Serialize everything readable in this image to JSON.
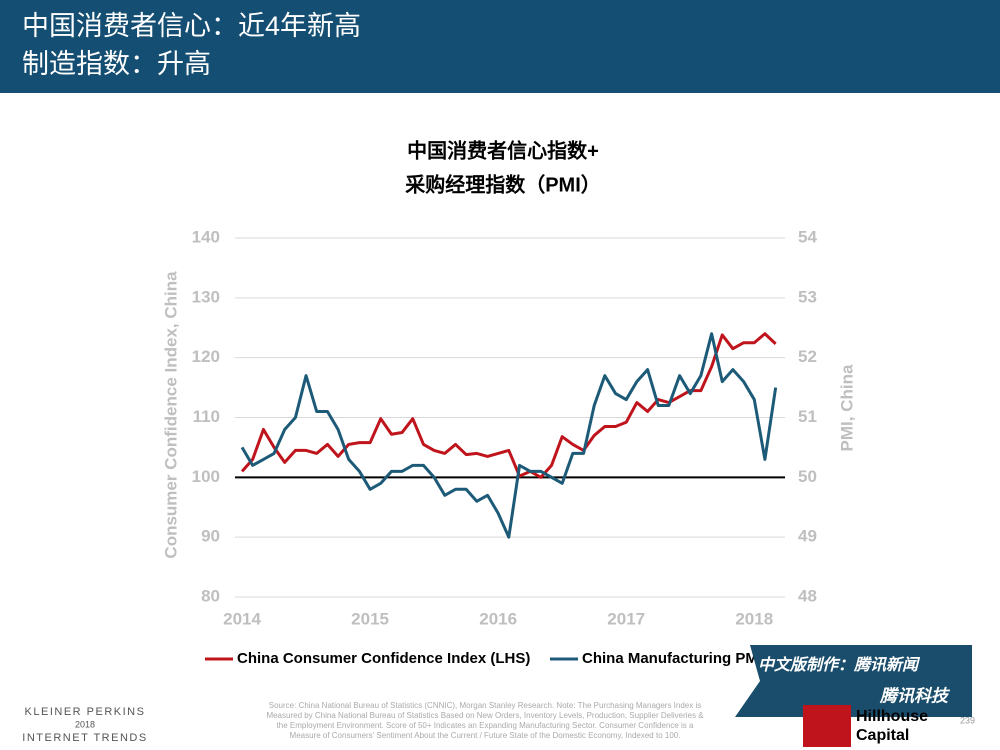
{
  "header": {
    "title": [
      "中国消费者信心：近4年新高",
      "制造指数：升高"
    ]
  },
  "chart_data": {
    "type": "line",
    "title": [
      "中国消费者信心指数+",
      "采购经理指数（PMI）"
    ],
    "ylabel": "Consumer Confidence Index, China",
    "y2label": "PMI, China",
    "x": [
      2014,
      2014.083,
      2014.167,
      2014.25,
      2014.333,
      2014.417,
      2014.5,
      2014.583,
      2014.667,
      2014.75,
      2014.833,
      2014.917,
      2015,
      2015.083,
      2015.167,
      2015.25,
      2015.333,
      2015.417,
      2015.5,
      2015.583,
      2015.667,
      2015.75,
      2015.833,
      2015.917,
      2016,
      2016.083,
      2016.167,
      2016.25,
      2016.333,
      2016.417,
      2016.5,
      2016.583,
      2016.667,
      2016.75,
      2016.833,
      2016.917,
      2017,
      2017.083,
      2017.167,
      2017.25,
      2017.333,
      2017.417,
      2017.5,
      2017.583,
      2017.667,
      2017.75,
      2017.833,
      2017.917,
      2018,
      2018.083,
      2018.167
    ],
    "xlim": [
      2013.945,
      2018.24
    ],
    "xticks": [
      2014,
      2015,
      2016,
      2017,
      2018
    ],
    "ylim": [
      80,
      140
    ],
    "yticks": [
      80,
      90,
      100,
      110,
      120,
      130,
      140
    ],
    "y2lim": [
      48,
      54
    ],
    "y2ticks": [
      48,
      49,
      50,
      51,
      52,
      53,
      54
    ],
    "reference_line": 100,
    "series": [
      {
        "name": "China Consumer Confidence Index (LHS)",
        "color": "#c0141c",
        "axis": "y",
        "values": [
          101,
          103,
          108,
          105,
          102.5,
          104.5,
          104.5,
          104,
          105.5,
          103.5,
          105.5,
          105.8,
          105.8,
          109.8,
          107.2,
          107.5,
          109.8,
          105.5,
          104.5,
          104,
          105.5,
          103.8,
          104,
          103.5,
          104,
          104.5,
          100.2,
          101,
          100,
          102,
          106.8,
          105.5,
          104.5,
          107,
          108.5,
          108.5,
          109.2,
          112.5,
          111,
          113,
          112.5,
          113.5,
          114.5,
          114.5,
          118.5,
          123.8,
          121.5,
          122.5,
          122.5,
          124,
          122.3
        ]
      },
      {
        "name": "China Manufacturing PMI (RHS)",
        "color": "#1c5a78",
        "axis": "y2",
        "values": [
          50.5,
          50.2,
          50.3,
          50.4,
          50.8,
          51,
          51.7,
          51.1,
          51.1,
          50.8,
          50.3,
          50.1,
          49.8,
          49.9,
          50.1,
          50.1,
          50.2,
          50.2,
          50,
          49.7,
          49.8,
          49.8,
          49.6,
          49.7,
          49.4,
          49.0,
          50.2,
          50.1,
          50.1,
          50,
          49.9,
          50.4,
          50.4,
          51.2,
          51.7,
          51.4,
          51.3,
          51.6,
          51.8,
          51.2,
          51.2,
          51.7,
          51.4,
          51.7,
          52.4,
          51.6,
          51.8,
          51.6,
          51.3,
          50.3,
          51.5
        ]
      }
    ]
  },
  "footer": {
    "brand": [
      "KLEINER PERKINS",
      "2018",
      "INTERNET TRENDS"
    ],
    "source": [
      "Source: China National Bureau of Statistics (CNNIC), Morgan Stanley Research. Note: The Purchasing Managers Index is",
      "Measured by China National Bureau of Statistics Based on New Orders, Inventory Levels, Production, Supplier Deliveries &",
      "the Employment Environment. Score of 50+ Indicates an Expanding Manufacturing Sector. Consumer Confidence is a",
      "Measure of Consumers' Sentiment About the Current / Future State of the Domestic Economy, Indexed to 100."
    ],
    "page": "239",
    "overlay": [
      "中文版制作：腾讯新闻",
      "腾讯科技"
    ],
    "partner": [
      "Hillhouse",
      "Capital"
    ]
  }
}
